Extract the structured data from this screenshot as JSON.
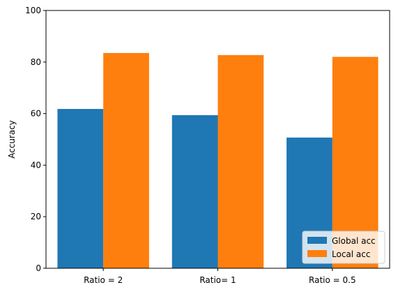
{
  "chart_data": {
    "type": "bar",
    "categories": [
      "Ratio = 2",
      "Ratio= 1",
      "Ratio = 0.5"
    ],
    "series": [
      {
        "name": "Global acc",
        "values": [
          61.8,
          59.4,
          50.7
        ],
        "color": "#1f77b4"
      },
      {
        "name": "Local acc",
        "values": [
          83.5,
          82.7,
          82.0
        ],
        "color": "#ff7f0e"
      }
    ],
    "title": "",
    "xlabel": "",
    "ylabel": "Accuracy",
    "ylim": [
      0,
      100
    ],
    "yticks": [
      0,
      20,
      40,
      60,
      80,
      100
    ],
    "grid": false,
    "legend_position": "bottom-right"
  }
}
